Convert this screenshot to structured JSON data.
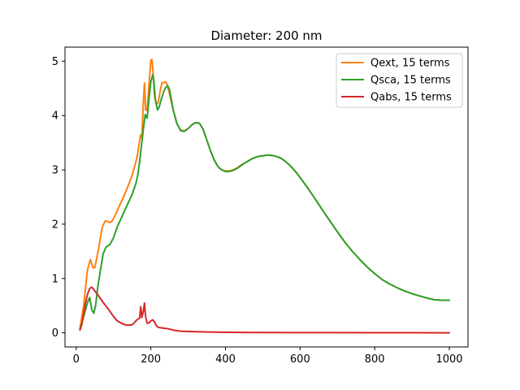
{
  "chart_data": {
    "type": "line",
    "title": "Diameter: 200 nm",
    "xlabel": "",
    "ylabel": "",
    "xlim": [
      -30,
      1050
    ],
    "ylim": [
      -0.26,
      5.26
    ],
    "xticks": [
      0,
      200,
      400,
      600,
      800,
      1000
    ],
    "yticks": [
      0,
      1,
      2,
      3,
      4,
      5
    ],
    "grid": false,
    "legend_position": "top-right",
    "series": [
      {
        "name": "Qext, 15 terms",
        "color": "#ff7f0e",
        "x": [
          10,
          20,
          30,
          38,
          45,
          50,
          60,
          70,
          78,
          85,
          90,
          95,
          100,
          110,
          120,
          130,
          140,
          150,
          160,
          165,
          170,
          173,
          176,
          180,
          183,
          186,
          190,
          195,
          200,
          203,
          206,
          210,
          215,
          220,
          225,
          230,
          240,
          245,
          250,
          260,
          270,
          280,
          290,
          300,
          310,
          320,
          330,
          340,
          350,
          360,
          370,
          380,
          390,
          400,
          410,
          420,
          430,
          440,
          450,
          460,
          470,
          480,
          490,
          500,
          510,
          520,
          530,
          540,
          550,
          560,
          570,
          580,
          590,
          600,
          620,
          640,
          660,
          680,
          700,
          720,
          740,
          760,
          780,
          800,
          820,
          840,
          860,
          880,
          900,
          920,
          940,
          960,
          980,
          1000
        ],
        "y": [
          0.08,
          0.5,
          1.15,
          1.35,
          1.2,
          1.2,
          1.55,
          1.95,
          2.06,
          2.05,
          2.03,
          2.05,
          2.1,
          2.25,
          2.4,
          2.55,
          2.72,
          2.9,
          3.15,
          3.3,
          3.55,
          3.65,
          3.58,
          4.25,
          4.6,
          4.1,
          4.1,
          4.55,
          5.02,
          5.03,
          4.8,
          4.35,
          4.2,
          4.25,
          4.45,
          4.6,
          4.62,
          4.55,
          4.4,
          4.1,
          3.85,
          3.73,
          3.72,
          3.76,
          3.83,
          3.87,
          3.86,
          3.75,
          3.55,
          3.35,
          3.18,
          3.06,
          3.0,
          2.98,
          2.98,
          3.0,
          3.03,
          3.08,
          3.12,
          3.16,
          3.2,
          3.23,
          3.25,
          3.26,
          3.27,
          3.27,
          3.26,
          3.24,
          3.21,
          3.16,
          3.1,
          3.03,
          2.95,
          2.86,
          2.67,
          2.47,
          2.26,
          2.06,
          1.86,
          1.67,
          1.5,
          1.35,
          1.21,
          1.09,
          0.98,
          0.9,
          0.83,
          0.77,
          0.72,
          0.68,
          0.64,
          0.61,
          0.6,
          0.6
        ]
      },
      {
        "name": "Qsca, 15 terms",
        "color": "#2ca02c",
        "x": [
          10,
          20,
          30,
          36,
          42,
          47,
          52,
          58,
          65,
          72,
          80,
          90,
          100,
          110,
          120,
          130,
          140,
          150,
          160,
          165,
          170,
          175,
          180,
          185,
          190,
          195,
          200,
          205,
          208,
          212,
          218,
          222,
          228,
          235,
          240,
          245,
          250,
          255,
          260,
          270,
          280,
          290,
          300,
          310,
          320,
          330,
          340,
          350,
          360,
          370,
          380,
          390,
          400,
          410,
          420,
          430,
          440,
          450,
          460,
          470,
          480,
          490,
          500,
          510,
          520,
          530,
          540,
          550,
          560,
          570,
          580,
          590,
          600,
          620,
          640,
          660,
          680,
          700,
          720,
          740,
          760,
          780,
          800,
          820,
          840,
          860,
          880,
          900,
          920,
          940,
          960,
          980,
          1000
        ],
        "y": [
          0.06,
          0.3,
          0.55,
          0.65,
          0.42,
          0.36,
          0.5,
          0.85,
          1.15,
          1.45,
          1.58,
          1.62,
          1.75,
          1.95,
          2.1,
          2.25,
          2.4,
          2.55,
          2.75,
          2.9,
          3.15,
          3.45,
          3.75,
          4.02,
          3.95,
          4.3,
          4.62,
          4.75,
          4.65,
          4.3,
          4.1,
          4.15,
          4.3,
          4.45,
          4.52,
          4.55,
          4.48,
          4.3,
          4.1,
          3.85,
          3.72,
          3.71,
          3.76,
          3.83,
          3.87,
          3.86,
          3.75,
          3.55,
          3.35,
          3.18,
          3.06,
          3.0,
          2.97,
          2.97,
          2.99,
          3.02,
          3.07,
          3.12,
          3.16,
          3.2,
          3.23,
          3.25,
          3.26,
          3.27,
          3.27,
          3.26,
          3.24,
          3.21,
          3.16,
          3.1,
          3.03,
          2.95,
          2.86,
          2.67,
          2.47,
          2.26,
          2.06,
          1.86,
          1.67,
          1.5,
          1.35,
          1.21,
          1.09,
          0.98,
          0.9,
          0.83,
          0.77,
          0.72,
          0.68,
          0.64,
          0.61,
          0.6,
          0.6
        ]
      },
      {
        "name": "Qabs, 15 terms",
        "color": "#d62728",
        "x": [
          10,
          15,
          20,
          25,
          30,
          35,
          40,
          45,
          50,
          60,
          70,
          80,
          90,
          100,
          110,
          120,
          130,
          140,
          150,
          155,
          160,
          165,
          170,
          173,
          176,
          180,
          183,
          186,
          190,
          195,
          200,
          205,
          210,
          215,
          220,
          230,
          240,
          250,
          260,
          270,
          280,
          300,
          320,
          350,
          400,
          450,
          500,
          600,
          700,
          800,
          900,
          1000
        ],
        "y": [
          0.05,
          0.15,
          0.35,
          0.55,
          0.7,
          0.8,
          0.84,
          0.82,
          0.77,
          0.68,
          0.58,
          0.49,
          0.4,
          0.3,
          0.22,
          0.18,
          0.15,
          0.14,
          0.15,
          0.18,
          0.22,
          0.25,
          0.27,
          0.48,
          0.28,
          0.4,
          0.55,
          0.3,
          0.18,
          0.18,
          0.22,
          0.24,
          0.2,
          0.13,
          0.1,
          0.09,
          0.08,
          0.07,
          0.05,
          0.04,
          0.03,
          0.025,
          0.02,
          0.015,
          0.01,
          0.008,
          0.006,
          0.004,
          0.003,
          0.002,
          0.001,
          0.0
        ]
      }
    ]
  }
}
